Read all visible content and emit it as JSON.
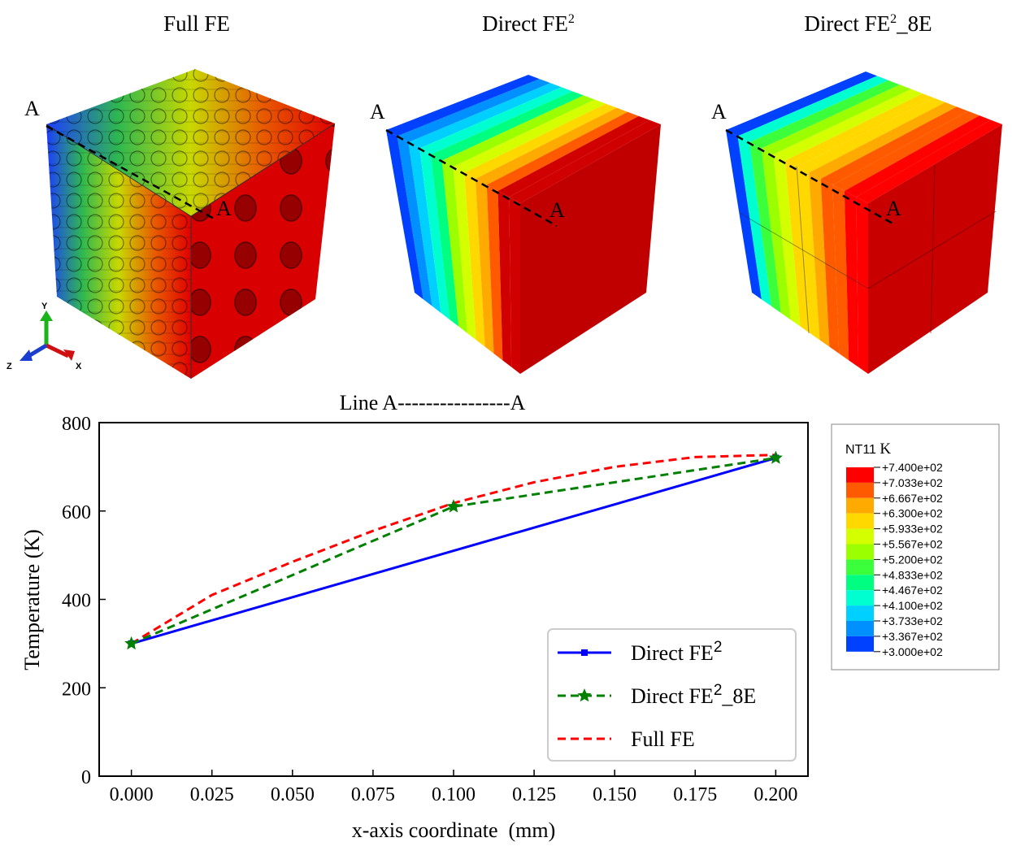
{
  "panels": [
    {
      "title_main": "Full FE",
      "title_sup": ""
    },
    {
      "title_main": "Direct FE",
      "title_sup": "2"
    },
    {
      "title_main": "Direct FE",
      "title_sup": "2",
      "title_tail": "_8E"
    }
  ],
  "section_marker": "A",
  "axis_triad": {
    "y": "Y",
    "x": "X",
    "z": "Z"
  },
  "colorbar": {
    "title": "NT11",
    "unit": "K",
    "levels": [
      "+7.400e+02",
      "+7.033e+02",
      "+6.667e+02",
      "+6.300e+02",
      "+5.933e+02",
      "+5.567e+02",
      "+5.200e+02",
      "+4.833e+02",
      "+4.467e+02",
      "+4.100e+02",
      "+3.733e+02",
      "+3.367e+02",
      "+3.000e+02"
    ],
    "colors": [
      "#ff0000",
      "#ff5a00",
      "#ffaa00",
      "#ffd800",
      "#d4ff00",
      "#9cff00",
      "#3cff3c",
      "#00ff80",
      "#00ffd0",
      "#00d0ff",
      "#0090ff",
      "#0040ff"
    ]
  },
  "chart_data": {
    "type": "line",
    "title": "Line A----------------A",
    "xlabel": "x-axis coordinate  (mm)",
    "ylabel": "Temperature (K)",
    "xlim": [
      -0.01,
      0.21
    ],
    "ylim": [
      0,
      800
    ],
    "xticks": [
      "0.000",
      "0.025",
      "0.050",
      "0.075",
      "0.100",
      "0.125",
      "0.150",
      "0.175",
      "0.200"
    ],
    "xtick_values": [
      0.0,
      0.025,
      0.05,
      0.075,
      0.1,
      0.125,
      0.15,
      0.175,
      0.2
    ],
    "yticks": [
      "0",
      "200",
      "400",
      "600",
      "800"
    ],
    "ytick_values": [
      0,
      200,
      400,
      600,
      800
    ],
    "series": [
      {
        "name": "Direct FE",
        "name_sup": "2",
        "name_tail": "",
        "color": "#0000ff",
        "dash": "solid",
        "marker": "square",
        "x": [
          0.0,
          0.2
        ],
        "y": [
          300,
          720
        ]
      },
      {
        "name": "Direct FE",
        "name_sup": "2",
        "name_tail": "_8E",
        "color": "#008000",
        "dash": "dashed",
        "marker": "star",
        "x": [
          0.0,
          0.1,
          0.2
        ],
        "y": [
          300,
          610,
          720
        ]
      },
      {
        "name": "Full FE",
        "name_sup": "",
        "name_tail": "",
        "color": "#ff0000",
        "dash": "dashed",
        "marker": "none",
        "x": [
          0.0,
          0.025,
          0.05,
          0.075,
          0.1,
          0.125,
          0.15,
          0.175,
          0.2
        ],
        "y": [
          300,
          410,
          485,
          555,
          618,
          665,
          700,
          722,
          727
        ]
      }
    ],
    "legend_position": "lower-right"
  }
}
